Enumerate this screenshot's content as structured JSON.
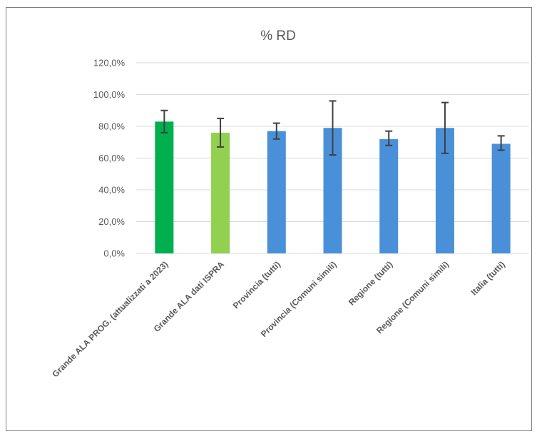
{
  "chart_data": {
    "type": "bar",
    "title": "% RD",
    "xlabel": "",
    "ylabel": "",
    "ylim": [
      0,
      120
    ],
    "y_ticks": [
      0,
      20,
      40,
      60,
      80,
      100,
      120
    ],
    "y_tick_labels": [
      "0,0%",
      "20,0%",
      "40,0%",
      "60,0%",
      "80,0%",
      "100,0%",
      "120,0%"
    ],
    "grid": true,
    "legend": "none",
    "categories": [
      "Grande ALA PROG. (attualizzati a 2023)",
      "Grande ALA dati ISPRA",
      "Provincia (tutti)",
      "Provincia (Comuni simili)",
      "Regione (tutti)",
      "Regione (Comuni simili)",
      "Italia (tutti)"
    ],
    "values": [
      83,
      76,
      77,
      79,
      72,
      79,
      69
    ],
    "error_low": [
      76,
      67,
      72,
      62,
      68,
      63,
      65
    ],
    "error_high": [
      90,
      85,
      82,
      96,
      77,
      95,
      74
    ],
    "colors": [
      "#00b050",
      "#92d050",
      "#4a90d9",
      "#4a90d9",
      "#4a90d9",
      "#4a90d9",
      "#4a90d9"
    ],
    "gridline_color": "#d9d9d9",
    "errorbar_color": "#404040"
  }
}
